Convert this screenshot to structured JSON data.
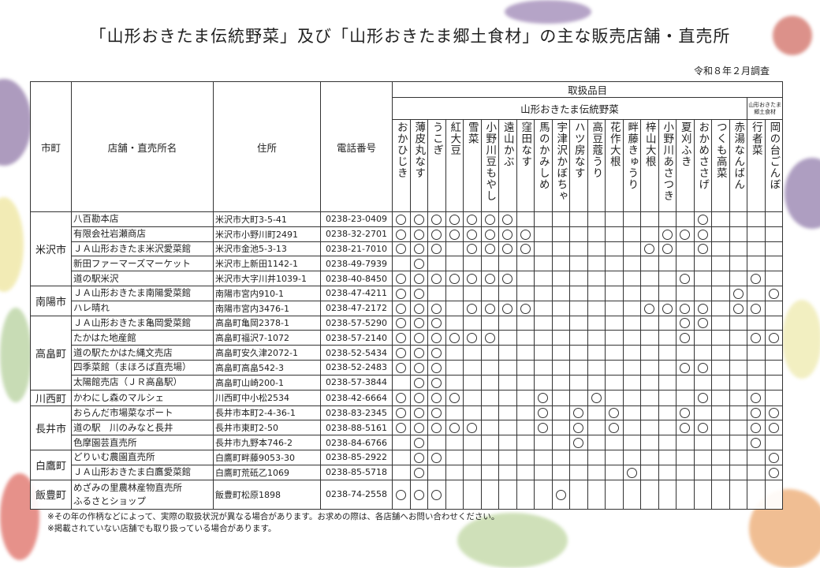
{
  "title": "「山形おきたま伝統野菜」及び「山形おきたま郷土食材」の主な販売店舗・直売所",
  "survey_date": "令和８年２月調査",
  "headers": {
    "town": "市町",
    "store": "店舗・直売所名",
    "address": "住所",
    "phone": "電話番号",
    "items": "取扱品目",
    "traditional": "山形おきたま伝統野菜",
    "local": "山形おきたま郷土食材"
  },
  "vegetables": [
    "おかひじき",
    "薄皮丸なす",
    "うこぎ",
    "紅大豆",
    "雪菜",
    "小野川豆もやし",
    "遠山かぶ",
    "窪田なす",
    "馬のかみしめ",
    "宇津沢かぼちゃ",
    "ハツ房なす",
    "高豆蔻うり",
    "花作大根",
    "畔藤きゅうり",
    "梓山大根",
    "小野川あさつき",
    "夏刈ふき",
    "おかめささげ",
    "つくも高菜",
    "赤湯なんばん",
    "行者菜",
    "岡の台ごんぼ"
  ],
  "mark_symbol": "○",
  "groups": [
    {
      "town": "米沢市",
      "stores": [
        {
          "name": "八百勘本店",
          "address": "米沢市大町3-5-41",
          "phone": "0238-23-0409",
          "marks": [
            0,
            1,
            2,
            3,
            4,
            5,
            6,
            17
          ]
        },
        {
          "name": "有限会社岩瀬商店",
          "address": "米沢市小野川町2491",
          "phone": "0238-32-2701",
          "marks": [
            0,
            1,
            2,
            3,
            4,
            5,
            6,
            7,
            15,
            16,
            17
          ]
        },
        {
          "name": "ＪＡ山形おきたま米沢愛菜館",
          "address": "米沢市金池5-3-13",
          "phone": "0238-21-7010",
          "marks": [
            0,
            1,
            2,
            4,
            5,
            6,
            7,
            14,
            15,
            17
          ]
        },
        {
          "name": "新田ファーマーズマーケット",
          "address": "米沢市上新田1142-1",
          "phone": "0238-49-7939",
          "marks": [
            1
          ]
        },
        {
          "name": "道の駅米沢",
          "address": "米沢市大字川井1039-1",
          "phone": "0238-40-8450",
          "marks": [
            0,
            1,
            2,
            3,
            4,
            5,
            6,
            16,
            20
          ]
        }
      ]
    },
    {
      "town": "南陽市",
      "stores": [
        {
          "name": "ＪＡ山形おきたま南陽愛菜館",
          "address": "南陽市宮内910-1",
          "phone": "0238-47-4211",
          "marks": [
            0,
            1,
            19,
            21
          ]
        },
        {
          "name": "ハレ晴れ",
          "address": "南陽市宮内3476-1",
          "phone": "0238-47-2172",
          "marks": [
            0,
            1,
            2,
            4,
            5,
            6,
            7,
            14,
            15,
            16,
            17,
            19,
            20
          ]
        }
      ]
    },
    {
      "town": "高畠町",
      "stores": [
        {
          "name": "ＪＡ山形おきたま亀岡愛菜館",
          "address": "高畠町亀岡2378-1",
          "phone": "0238-57-5290",
          "marks": [
            0,
            1,
            2,
            16,
            17
          ]
        },
        {
          "name": "たかはた地産館",
          "address": "高畠町福沢7-1072",
          "phone": "0238-57-2140",
          "marks": [
            0,
            1,
            2,
            3,
            4,
            5,
            16,
            20,
            21
          ]
        },
        {
          "name": "道の駅たかはた縄文売店",
          "address": "高畠町安久津2072-1",
          "phone": "0238-52-5434",
          "marks": [
            0,
            1,
            2
          ]
        },
        {
          "name": "四季菜館（まほろば直売場）",
          "address": "高畠町高畠542-3",
          "phone": "0238-52-2483",
          "marks": [
            0,
            1,
            2,
            16,
            17
          ]
        },
        {
          "name": "太陽館売店（ＪＲ高畠駅）",
          "address": "高畠町山崎200-1",
          "phone": "0238-57-3844",
          "marks": [
            1,
            2
          ]
        }
      ]
    },
    {
      "town": "川西町",
      "stores": [
        {
          "name": "かわにし森のマルシェ",
          "address": "川西町中小松2534",
          "phone": "0238-42-6664",
          "marks": [
            0,
            1,
            2,
            3,
            8,
            11,
            17,
            20
          ]
        }
      ]
    },
    {
      "town": "長井市",
      "stores": [
        {
          "name": "おらんだ市場菜なポート",
          "address": "長井市本町2-4-36-1",
          "phone": "0238-83-2345",
          "marks": [
            0,
            1,
            2,
            8,
            10,
            12,
            16,
            20,
            21
          ]
        },
        {
          "name": "道の駅　川のみなと長井",
          "address": "長井市東町2-50",
          "phone": "0238-88-5161",
          "marks": [
            0,
            1,
            2,
            3,
            4,
            8,
            10,
            12,
            16,
            17,
            20,
            21
          ]
        },
        {
          "name": "色摩園芸直売所",
          "address": "長井市九野本746-2",
          "phone": "0238-84-6766",
          "marks": [
            1,
            10,
            20
          ]
        }
      ]
    },
    {
      "town": "白鷹町",
      "stores": [
        {
          "name": "どりいむ農園直売所",
          "address": "白鷹町畔藤9053-30",
          "phone": "0238-85-2922",
          "marks": [
            1,
            2,
            21
          ]
        },
        {
          "name": "ＪＡ山形おきたま白鷹愛菜館",
          "address": "白鷹町荒砥乙1069",
          "phone": "0238-85-5718",
          "marks": [
            1,
            13,
            21
          ]
        }
      ]
    },
    {
      "town": "飯豊町",
      "stores": [
        {
          "name": "めざみの里農林産物直売所\nふるさとショップ",
          "address": "飯豊町松原1898",
          "phone": "0238-74-2558",
          "marks": [
            0,
            1,
            2,
            9
          ]
        }
      ]
    }
  ],
  "notes": [
    "※その年の作柄などによって、実際の取扱状況が異なる場合があります。お求めの際は、各店舗へお問い合わせください。",
    "※掲載されていない店舗でも取り扱っている場合があります。"
  ]
}
